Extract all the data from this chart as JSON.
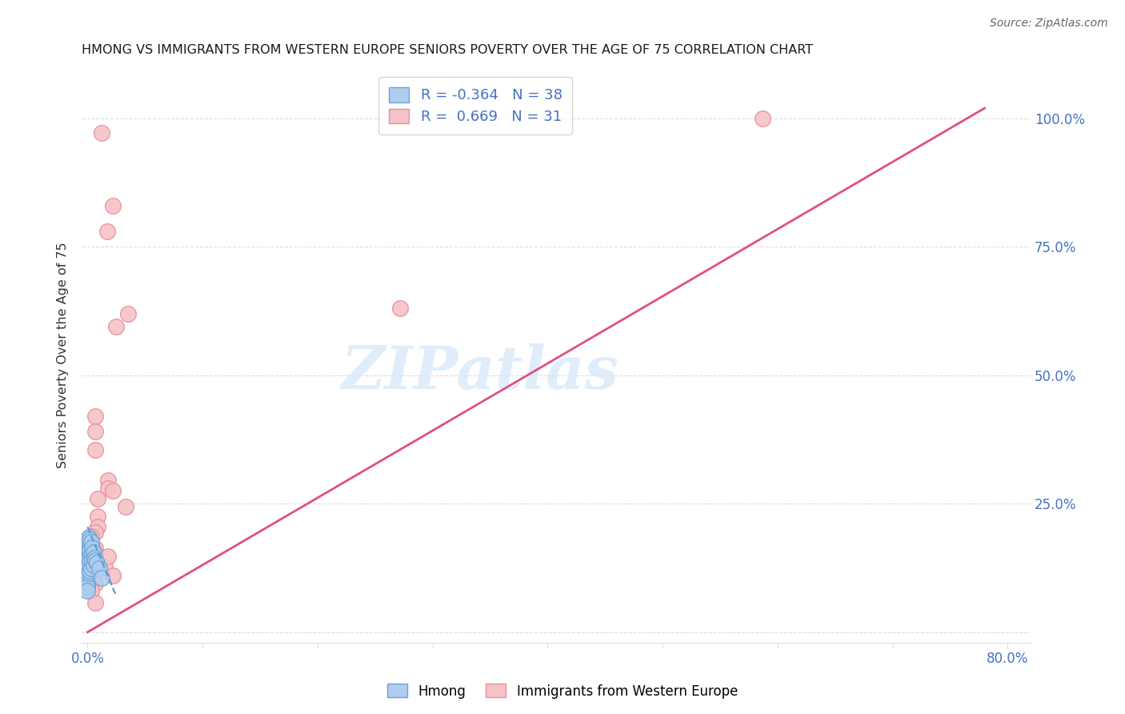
{
  "title": "HMONG VS IMMIGRANTS FROM WESTERN EUROPE SENIORS POVERTY OVER THE AGE OF 75 CORRELATION CHART",
  "source": "Source: ZipAtlas.com",
  "ylabel": "Seniors Poverty Over the Age of 75",
  "xlim": [
    -0.005,
    0.82
  ],
  "ylim": [
    -0.02,
    1.1
  ],
  "xmin": 0.0,
  "xmax": 0.8,
  "ymin": 0.0,
  "ymax": 1.0,
  "xtick_positions": [
    0.0,
    0.1,
    0.2,
    0.3,
    0.4,
    0.5,
    0.6,
    0.7,
    0.8
  ],
  "xtick_labels": [
    "0.0%",
    "",
    "",
    "",
    "",
    "",
    "",
    "",
    "80.0%"
  ],
  "ytick_positions": [
    0.0,
    0.25,
    0.5,
    0.75,
    1.0
  ],
  "ytick_labels_right": [
    "",
    "25.0%",
    "50.0%",
    "75.0%",
    "100.0%"
  ],
  "hmong_R": -0.364,
  "hmong_N": 38,
  "weurope_R": 0.669,
  "weurope_N": 31,
  "hmong_facecolor": "#AECDEF",
  "hmong_edgecolor": "#6BA3D6",
  "weurope_facecolor": "#F5C2C7",
  "weurope_edgecolor": "#E8909A",
  "trend_hmong_color": "#5B9BD5",
  "trend_weurope_color": "#E05080",
  "axis_color": "#4472C4",
  "grid_color": "#DDDDDD",
  "title_color": "#1A1A1A",
  "source_color": "#666666",
  "watermark_color": "#D6E8FA",
  "background_color": "#FFFFFF",
  "we_trend_x0": 0.0,
  "we_trend_y0": 0.0,
  "we_trend_x1": 0.78,
  "we_trend_y1": 1.02,
  "hmong_trend_x0": 0.0,
  "hmong_trend_y0": 0.205,
  "hmong_trend_x1": 0.025,
  "hmong_trend_y1": 0.07,
  "weurope_x": [
    0.012,
    0.022,
    0.017,
    0.272,
    0.035,
    0.025,
    0.007,
    0.007,
    0.007,
    0.018,
    0.018,
    0.022,
    0.009,
    0.033,
    0.009,
    0.009,
    0.007,
    0.003,
    0.003,
    0.007,
    0.007,
    0.003,
    0.007,
    0.015,
    0.005,
    0.022,
    0.007,
    0.587,
    0.003,
    0.007,
    0.018
  ],
  "weurope_y": [
    0.972,
    0.83,
    0.78,
    0.63,
    0.62,
    0.595,
    0.42,
    0.39,
    0.355,
    0.295,
    0.28,
    0.275,
    0.26,
    0.245,
    0.225,
    0.205,
    0.195,
    0.187,
    0.175,
    0.163,
    0.153,
    0.143,
    0.135,
    0.128,
    0.118,
    0.11,
    0.095,
    1.0,
    0.08,
    0.058,
    0.148
  ],
  "hmong_x": [
    0.0,
    0.0,
    0.0,
    0.0,
    0.0,
    0.0,
    0.0,
    0.0,
    0.0,
    0.0,
    0.0,
    0.0,
    0.0,
    0.0,
    0.0,
    0.0,
    0.001,
    0.001,
    0.001,
    0.001,
    0.001,
    0.001,
    0.002,
    0.002,
    0.002,
    0.002,
    0.003,
    0.003,
    0.003,
    0.004,
    0.004,
    0.005,
    0.005,
    0.006,
    0.007,
    0.008,
    0.01,
    0.012
  ],
  "hmong_y": [
    0.175,
    0.168,
    0.162,
    0.156,
    0.15,
    0.144,
    0.138,
    0.132,
    0.126,
    0.12,
    0.114,
    0.108,
    0.102,
    0.095,
    0.088,
    0.08,
    0.185,
    0.175,
    0.16,
    0.145,
    0.13,
    0.115,
    0.18,
    0.16,
    0.14,
    0.12,
    0.175,
    0.15,
    0.125,
    0.165,
    0.14,
    0.155,
    0.13,
    0.145,
    0.14,
    0.135,
    0.125,
    0.105
  ]
}
